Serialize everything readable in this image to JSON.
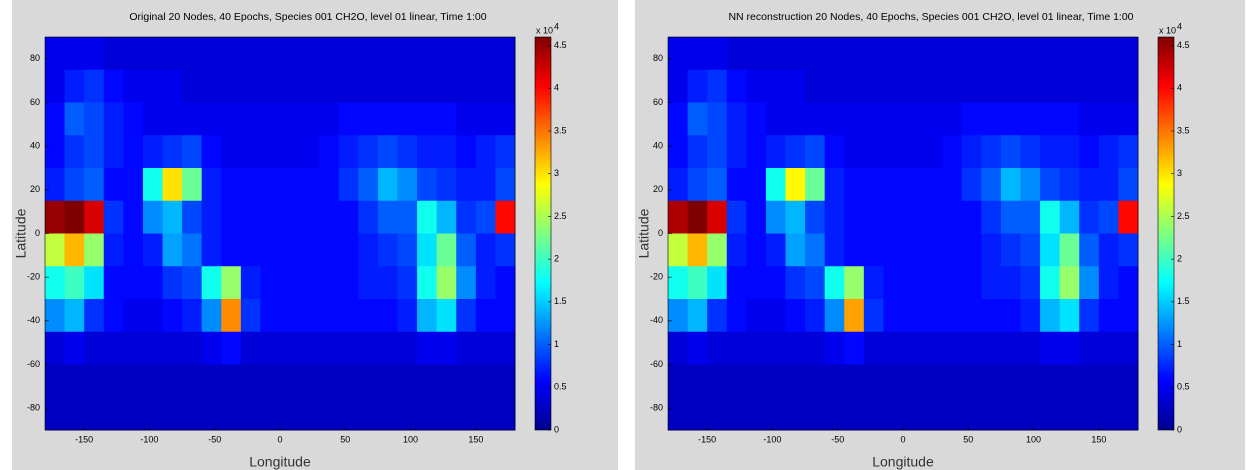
{
  "chart_data": [
    {
      "type": "heatmap",
      "title": "Original 20 Nodes, 40 Epochs, Species 001 CH2O, level 01 linear, Time 1:00",
      "xlabel": "Longitude",
      "ylabel": "Latitude",
      "colormap": "jet",
      "x": [
        -172.5,
        -157.5,
        -142.5,
        -127.5,
        -112.5,
        -97.5,
        -82.5,
        -67.5,
        -52.5,
        -37.5,
        -22.5,
        -7.5,
        7.5,
        22.5,
        37.5,
        52.5,
        67.5,
        82.5,
        97.5,
        112.5,
        127.5,
        142.5,
        157.5,
        172.5
      ],
      "y": [
        82.5,
        67.5,
        52.5,
        37.5,
        22.5,
        7.5,
        -7.5,
        -22.5,
        -37.5,
        -52.5,
        -67.5,
        -82.5
      ],
      "z": [
        [
          0.5,
          0.5,
          0.5,
          0.4,
          0.4,
          0.4,
          0.4,
          0.4,
          0.4,
          0.4,
          0.4,
          0.4,
          0.4,
          0.4,
          0.4,
          0.4,
          0.4,
          0.4,
          0.4,
          0.4,
          0.4,
          0.4,
          0.4,
          0.4
        ],
        [
          0.5,
          0.7,
          0.8,
          0.6,
          0.5,
          0.5,
          0.5,
          0.4,
          0.4,
          0.4,
          0.4,
          0.4,
          0.4,
          0.4,
          0.4,
          0.4,
          0.4,
          0.4,
          0.4,
          0.4,
          0.4,
          0.4,
          0.4,
          0.4
        ],
        [
          0.6,
          1.0,
          0.9,
          0.7,
          0.6,
          0.5,
          0.5,
          0.5,
          0.5,
          0.5,
          0.5,
          0.5,
          0.5,
          0.5,
          0.5,
          0.6,
          0.6,
          0.6,
          0.6,
          0.6,
          0.6,
          0.5,
          0.5,
          0.5
        ],
        [
          0.6,
          0.8,
          0.9,
          0.7,
          0.6,
          0.7,
          0.8,
          0.9,
          0.6,
          0.5,
          0.5,
          0.5,
          0.5,
          0.5,
          0.6,
          0.7,
          0.8,
          0.9,
          0.8,
          0.7,
          0.7,
          0.6,
          0.7,
          0.8
        ],
        [
          0.7,
          0.9,
          1.0,
          0.6,
          0.6,
          1.8,
          3.0,
          2.2,
          0.7,
          0.6,
          0.6,
          0.6,
          0.6,
          0.6,
          0.6,
          0.8,
          1.0,
          1.4,
          1.2,
          0.9,
          0.8,
          0.7,
          0.7,
          0.9
        ],
        [
          4.5,
          4.6,
          4.2,
          0.8,
          0.6,
          1.2,
          1.4,
          0.9,
          0.7,
          0.6,
          0.6,
          0.6,
          0.6,
          0.6,
          0.6,
          0.6,
          0.8,
          1.0,
          1.0,
          1.8,
          1.4,
          0.8,
          0.9,
          4.0
        ],
        [
          2.6,
          3.2,
          2.4,
          0.7,
          0.6,
          0.7,
          1.3,
          1.1,
          0.7,
          0.6,
          0.6,
          0.6,
          0.6,
          0.6,
          0.6,
          0.6,
          0.7,
          0.8,
          0.9,
          1.6,
          2.2,
          1.0,
          0.7,
          0.8
        ],
        [
          1.8,
          2.0,
          1.6,
          0.6,
          0.6,
          0.6,
          0.8,
          0.9,
          1.8,
          2.4,
          0.7,
          0.6,
          0.6,
          0.6,
          0.6,
          0.6,
          0.7,
          0.7,
          0.8,
          1.8,
          2.4,
          1.2,
          0.7,
          0.6
        ],
        [
          1.2,
          1.4,
          0.8,
          0.6,
          0.5,
          0.5,
          0.6,
          0.7,
          1.2,
          3.4,
          0.8,
          0.6,
          0.6,
          0.6,
          0.6,
          0.6,
          0.6,
          0.6,
          0.7,
          1.4,
          1.6,
          0.8,
          0.6,
          0.6
        ],
        [
          0.4,
          0.5,
          0.4,
          0.4,
          0.4,
          0.4,
          0.4,
          0.4,
          0.5,
          0.6,
          0.4,
          0.4,
          0.4,
          0.4,
          0.4,
          0.4,
          0.4,
          0.4,
          0.4,
          0.5,
          0.5,
          0.4,
          0.4,
          0.4
        ],
        [
          0.3,
          0.3,
          0.3,
          0.3,
          0.3,
          0.3,
          0.3,
          0.3,
          0.3,
          0.3,
          0.3,
          0.3,
          0.3,
          0.3,
          0.3,
          0.3,
          0.3,
          0.3,
          0.3,
          0.3,
          0.3,
          0.3,
          0.3,
          0.3
        ],
        [
          0.3,
          0.3,
          0.3,
          0.3,
          0.3,
          0.3,
          0.3,
          0.3,
          0.3,
          0.3,
          0.3,
          0.3,
          0.3,
          0.3,
          0.3,
          0.3,
          0.3,
          0.3,
          0.3,
          0.3,
          0.3,
          0.3,
          0.3,
          0.3
        ]
      ],
      "xlim": [
        -180,
        180
      ],
      "ylim": [
        -90,
        90
      ],
      "xticks": [
        -150,
        -100,
        -50,
        0,
        50,
        100,
        150
      ],
      "yticks": [
        80,
        60,
        40,
        20,
        0,
        -20,
        -40,
        -60,
        -80
      ],
      "clim": [
        0,
        4.6
      ],
      "cticks": [
        0,
        0.5,
        1,
        1.5,
        2,
        2.5,
        3,
        3.5,
        4,
        4.5
      ],
      "colorbar_label": "x 10",
      "colorbar_exponent": "4"
    },
    {
      "type": "heatmap",
      "title": "NN reconstruction 20 Nodes, 40 Epochs, Species 001 CH2O, level 01 linear, Time 1:00",
      "xlabel": "Longitude",
      "ylabel": "Latitude",
      "colormap": "jet",
      "x": [
        -172.5,
        -157.5,
        -142.5,
        -127.5,
        -112.5,
        -97.5,
        -82.5,
        -67.5,
        -52.5,
        -37.5,
        -22.5,
        -7.5,
        7.5,
        22.5,
        37.5,
        52.5,
        67.5,
        82.5,
        97.5,
        112.5,
        127.5,
        142.5,
        157.5,
        172.5
      ],
      "y": [
        82.5,
        67.5,
        52.5,
        37.5,
        22.5,
        7.5,
        -7.5,
        -22.5,
        -37.5,
        -52.5,
        -67.5,
        -82.5
      ],
      "z": [
        [
          0.5,
          0.5,
          0.5,
          0.4,
          0.4,
          0.4,
          0.4,
          0.4,
          0.4,
          0.4,
          0.4,
          0.4,
          0.4,
          0.4,
          0.4,
          0.4,
          0.4,
          0.4,
          0.4,
          0.4,
          0.4,
          0.4,
          0.4,
          0.4
        ],
        [
          0.5,
          0.7,
          0.8,
          0.6,
          0.5,
          0.5,
          0.5,
          0.4,
          0.4,
          0.4,
          0.4,
          0.4,
          0.4,
          0.4,
          0.4,
          0.4,
          0.4,
          0.4,
          0.4,
          0.4,
          0.4,
          0.4,
          0.4,
          0.4
        ],
        [
          0.6,
          1.0,
          0.9,
          0.7,
          0.6,
          0.5,
          0.5,
          0.5,
          0.5,
          0.5,
          0.5,
          0.5,
          0.5,
          0.5,
          0.5,
          0.6,
          0.6,
          0.6,
          0.6,
          0.6,
          0.6,
          0.5,
          0.5,
          0.5
        ],
        [
          0.6,
          0.8,
          0.9,
          0.7,
          0.6,
          0.7,
          0.8,
          0.9,
          0.6,
          0.5,
          0.5,
          0.5,
          0.5,
          0.5,
          0.6,
          0.7,
          0.8,
          0.9,
          0.8,
          0.7,
          0.7,
          0.6,
          0.7,
          0.8
        ],
        [
          0.7,
          0.9,
          1.0,
          0.6,
          0.6,
          1.8,
          2.9,
          2.2,
          0.7,
          0.6,
          0.6,
          0.6,
          0.6,
          0.6,
          0.6,
          0.8,
          1.0,
          1.4,
          1.2,
          0.9,
          0.8,
          0.7,
          0.7,
          0.9
        ],
        [
          4.4,
          4.6,
          4.2,
          0.8,
          0.6,
          1.2,
          1.4,
          0.9,
          0.7,
          0.6,
          0.6,
          0.6,
          0.6,
          0.6,
          0.6,
          0.6,
          0.8,
          1.0,
          1.0,
          1.8,
          1.4,
          0.8,
          0.9,
          4.0
        ],
        [
          2.6,
          3.2,
          2.4,
          0.7,
          0.6,
          0.7,
          1.3,
          1.1,
          0.7,
          0.6,
          0.6,
          0.6,
          0.6,
          0.6,
          0.6,
          0.6,
          0.7,
          0.8,
          0.9,
          1.6,
          2.2,
          1.0,
          0.7,
          0.8
        ],
        [
          1.8,
          2.0,
          1.6,
          0.6,
          0.6,
          0.6,
          0.8,
          0.9,
          1.8,
          2.4,
          0.7,
          0.6,
          0.6,
          0.6,
          0.6,
          0.6,
          0.7,
          0.7,
          0.8,
          1.8,
          2.4,
          1.2,
          0.7,
          0.6
        ],
        [
          1.2,
          1.4,
          0.8,
          0.6,
          0.5,
          0.5,
          0.6,
          0.7,
          1.2,
          3.3,
          0.8,
          0.6,
          0.6,
          0.6,
          0.6,
          0.6,
          0.6,
          0.6,
          0.7,
          1.4,
          1.6,
          0.8,
          0.6,
          0.6
        ],
        [
          0.4,
          0.5,
          0.4,
          0.4,
          0.4,
          0.4,
          0.4,
          0.4,
          0.5,
          0.6,
          0.4,
          0.4,
          0.4,
          0.4,
          0.4,
          0.4,
          0.4,
          0.4,
          0.4,
          0.5,
          0.5,
          0.4,
          0.4,
          0.4
        ],
        [
          0.3,
          0.3,
          0.3,
          0.3,
          0.3,
          0.3,
          0.3,
          0.3,
          0.3,
          0.3,
          0.3,
          0.3,
          0.3,
          0.3,
          0.3,
          0.3,
          0.3,
          0.3,
          0.3,
          0.3,
          0.3,
          0.3,
          0.3,
          0.3
        ],
        [
          0.3,
          0.3,
          0.3,
          0.3,
          0.3,
          0.3,
          0.3,
          0.3,
          0.3,
          0.3,
          0.3,
          0.3,
          0.3,
          0.3,
          0.3,
          0.3,
          0.3,
          0.3,
          0.3,
          0.3,
          0.3,
          0.3,
          0.3,
          0.3
        ]
      ],
      "xlim": [
        -180,
        180
      ],
      "ylim": [
        -90,
        90
      ],
      "xticks": [
        -150,
        -100,
        -50,
        0,
        50,
        100,
        150
      ],
      "yticks": [
        80,
        60,
        40,
        20,
        0,
        -20,
        -40,
        -60,
        -80
      ],
      "clim": [
        0,
        4.6
      ],
      "cticks": [
        0,
        0.5,
        1,
        1.5,
        2,
        2.5,
        3,
        3.5,
        4,
        4.5
      ],
      "colorbar_label": "x 10",
      "colorbar_exponent": "4"
    }
  ]
}
